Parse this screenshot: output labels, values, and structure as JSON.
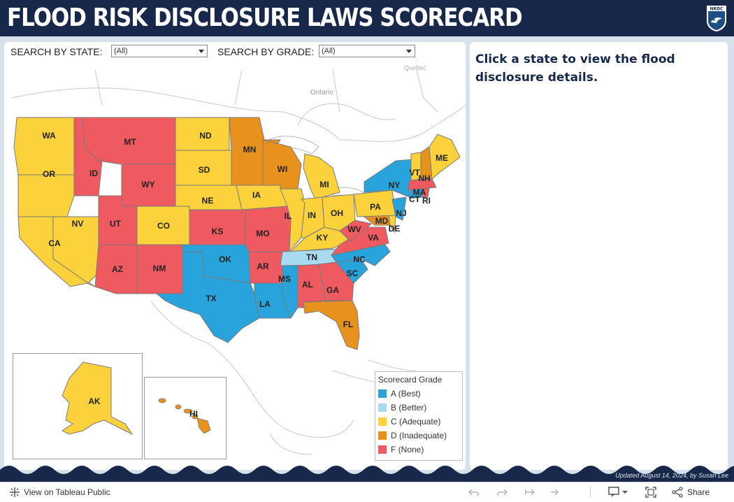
{
  "header": {
    "title": "FLOOD RISK DISCLOSURE LAWS SCORECARD",
    "logo_text": "NRDC"
  },
  "filters": {
    "state_label": "SEARCH BY STATE:",
    "state_value": "(All)",
    "grade_label": "SEARCH BY GRADE:",
    "grade_value": "(All)"
  },
  "map": {
    "place_labels": [
      "Ontario",
      "Quebec"
    ],
    "states": [
      {
        "abbr": "WA",
        "grade": "C"
      },
      {
        "abbr": "OR",
        "grade": "C"
      },
      {
        "abbr": "CA",
        "grade": "C"
      },
      {
        "abbr": "NV",
        "grade": "C"
      },
      {
        "abbr": "ID",
        "grade": "F"
      },
      {
        "abbr": "MT",
        "grade": "F"
      },
      {
        "abbr": "WY",
        "grade": "F"
      },
      {
        "abbr": "UT",
        "grade": "F"
      },
      {
        "abbr": "AZ",
        "grade": "F"
      },
      {
        "abbr": "NM",
        "grade": "F"
      },
      {
        "abbr": "CO",
        "grade": "C"
      },
      {
        "abbr": "ND",
        "grade": "C"
      },
      {
        "abbr": "SD",
        "grade": "C"
      },
      {
        "abbr": "NE",
        "grade": "C"
      },
      {
        "abbr": "KS",
        "grade": "F"
      },
      {
        "abbr": "OK",
        "grade": "A"
      },
      {
        "abbr": "TX",
        "grade": "A"
      },
      {
        "abbr": "MN",
        "grade": "D"
      },
      {
        "abbr": "IA",
        "grade": "C"
      },
      {
        "abbr": "MO",
        "grade": "F"
      },
      {
        "abbr": "AR",
        "grade": "F"
      },
      {
        "abbr": "LA",
        "grade": "A"
      },
      {
        "abbr": "WI",
        "grade": "D"
      },
      {
        "abbr": "IL",
        "grade": "C"
      },
      {
        "abbr": "MI",
        "grade": "C"
      },
      {
        "abbr": "IN",
        "grade": "C"
      },
      {
        "abbr": "OH",
        "grade": "C"
      },
      {
        "abbr": "KY",
        "grade": "C"
      },
      {
        "abbr": "TN",
        "grade": "B"
      },
      {
        "abbr": "MS",
        "grade": "A"
      },
      {
        "abbr": "AL",
        "grade": "F"
      },
      {
        "abbr": "GA",
        "grade": "F"
      },
      {
        "abbr": "FL",
        "grade": "D"
      },
      {
        "abbr": "SC",
        "grade": "A"
      },
      {
        "abbr": "NC",
        "grade": "A"
      },
      {
        "abbr": "VA",
        "grade": "F"
      },
      {
        "abbr": "WV",
        "grade": "F"
      },
      {
        "abbr": "PA",
        "grade": "C"
      },
      {
        "abbr": "NY",
        "grade": "A"
      },
      {
        "abbr": "NJ",
        "grade": "A"
      },
      {
        "abbr": "DE",
        "grade": "C"
      },
      {
        "abbr": "MD",
        "grade": "D"
      },
      {
        "abbr": "CT",
        "grade": "A"
      },
      {
        "abbr": "RI",
        "grade": "F"
      },
      {
        "abbr": "MA",
        "grade": "F"
      },
      {
        "abbr": "VT",
        "grade": "C"
      },
      {
        "abbr": "NH",
        "grade": "D"
      },
      {
        "abbr": "ME",
        "grade": "C"
      },
      {
        "abbr": "AK",
        "grade": "C"
      },
      {
        "abbr": "HI",
        "grade": "D"
      }
    ]
  },
  "legend": {
    "title": "Scorecard Grade",
    "items": [
      {
        "grade": "A",
        "label": "A (Best)",
        "color": "#29a3dc"
      },
      {
        "grade": "B",
        "label": "B (Better)",
        "color": "#a8dbf0"
      },
      {
        "grade": "C",
        "label": "C (Adequate)",
        "color": "#fbd23c"
      },
      {
        "grade": "D",
        "label": "D (Inadequate)",
        "color": "#e8921e"
      },
      {
        "grade": "F",
        "label": "F (None)",
        "color": "#ee5a5f"
      }
    ]
  },
  "detail": {
    "prompt": "Click a state to view the flood disclosure details."
  },
  "credit": "Updated August 14, 2024, by Susan Lee",
  "footer": {
    "view_link": "View on Tableau Public",
    "share_label": "Share",
    "icons": [
      "tableau-icon",
      "undo-icon",
      "redo-icon",
      "revert-icon",
      "forward-icon",
      "comment-icon",
      "fullscreen-icon",
      "share-icon"
    ]
  }
}
